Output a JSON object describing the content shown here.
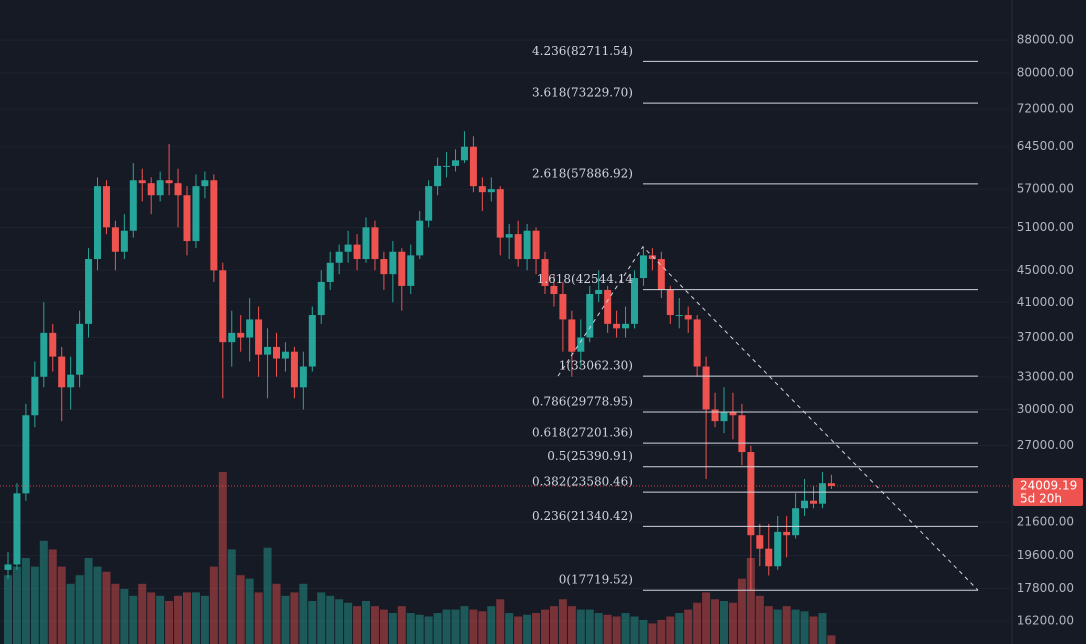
{
  "chart_data": {
    "type": "candlestick",
    "log_scale": true,
    "grid": true,
    "up_color": "#26a69a",
    "down_color": "#ef5350",
    "ylim": [
      15150,
      98900
    ],
    "yticks": [
      {
        "value": 88000,
        "label": "88000.00"
      },
      {
        "value": 80000,
        "label": "80000.00"
      },
      {
        "value": 72000,
        "label": "72000.00"
      },
      {
        "value": 64500,
        "label": "64500.00"
      },
      {
        "value": 57000,
        "label": "57000.00"
      },
      {
        "value": 51000,
        "label": "51000.00"
      },
      {
        "value": 45000,
        "label": "45000.00"
      },
      {
        "value": 41000,
        "label": "41000.00"
      },
      {
        "value": 37000,
        "label": "37000.00"
      },
      {
        "value": 33000,
        "label": "33000.00"
      },
      {
        "value": 30000,
        "label": "30000.00"
      },
      {
        "value": 27000,
        "label": "27000.00"
      },
      {
        "value": 21600,
        "label": "21600.00"
      },
      {
        "value": 19600,
        "label": "19600.00"
      },
      {
        "value": 17800,
        "label": "17800.00"
      },
      {
        "value": 16200,
        "label": "16200.00"
      }
    ],
    "open": [
      18800,
      19100,
      23500,
      29500,
      33000,
      37500,
      35000,
      32000,
      33200,
      38500,
      46500,
      57500,
      51000,
      47500,
      50500,
      58500,
      58000,
      56000,
      58500,
      58000,
      56000,
      49000,
      57500,
      58500,
      45000,
      36500,
      37500,
      37000,
      39000,
      35200,
      36000,
      34800,
      35500,
      32000,
      34000,
      39500,
      43500,
      46000,
      47500,
      48500,
      46500,
      51000,
      46500,
      44500,
      47500,
      43000,
      47000,
      52000,
      57500,
      61000,
      61000,
      62000,
      64500,
      57500,
      56500,
      57000,
      49500,
      50000,
      46500,
      50500,
      46500,
      43000,
      42000,
      39000,
      35500,
      37000,
      42000,
      42500,
      38500,
      38000,
      38500,
      44000,
      47000,
      46500,
      42500,
      39500,
      39500,
      39000,
      34000,
      30000,
      29000,
      29800,
      29500,
      26500,
      20800,
      20000,
      19000,
      21000,
      20800,
      22500,
      23000,
      22800,
      24200
    ],
    "high": [
      19800,
      24200,
      30500,
      34500,
      41000,
      38500,
      36000,
      35000,
      40000,
      48000,
      59000,
      58500,
      52000,
      53000,
      61500,
      60500,
      59000,
      60000,
      65000,
      60500,
      57500,
      59500,
      60000,
      59500,
      46000,
      40000,
      39500,
      41500,
      40500,
      38000,
      37500,
      36500,
      36000,
      35500,
      40500,
      45000,
      47500,
      48500,
      50500,
      50000,
      52500,
      52000,
      47500,
      49000,
      48000,
      48500,
      53500,
      58500,
      62500,
      63500,
      64000,
      67500,
      66500,
      59000,
      59000,
      57500,
      51500,
      52000,
      51500,
      51000,
      47500,
      44500,
      43500,
      40000,
      39000,
      43000,
      45000,
      43000,
      40000,
      40500,
      45000,
      48000,
      48000,
      47500,
      43000,
      41500,
      40500,
      39500,
      35000,
      31500,
      32000,
      31500,
      30500,
      27000,
      21500,
      21500,
      22000,
      22000,
      23500,
      24500,
      24000,
      25000,
      24800
    ],
    "low": [
      18300,
      18800,
      23000,
      28500,
      32000,
      33500,
      29000,
      30000,
      32000,
      37000,
      45000,
      50000,
      45000,
      46500,
      49500,
      55000,
      53000,
      55000,
      56000,
      51000,
      47000,
      48000,
      55500,
      43500,
      31000,
      34000,
      35500,
      34500,
      33000,
      31000,
      33000,
      33500,
      31000,
      30000,
      33500,
      38500,
      42500,
      44500,
      46000,
      45000,
      46000,
      45000,
      42500,
      41000,
      40000,
      42000,
      46500,
      51000,
      56000,
      59000,
      60000,
      61500,
      56500,
      53500,
      55000,
      47000,
      46500,
      45500,
      45000,
      44500,
      42000,
      40500,
      35500,
      33000,
      34000,
      36500,
      41000,
      37500,
      37000,
      37000,
      38000,
      43000,
      45000,
      41500,
      38500,
      38000,
      37500,
      33000,
      24500,
      28500,
      28000,
      27500,
      25500,
      17700,
      19000,
      18500,
      18800,
      19500,
      20600,
      22000,
      22500,
      22500,
      23800
    ],
    "close": [
      19100,
      23500,
      29500,
      33000,
      37500,
      35000,
      32000,
      33200,
      38500,
      46500,
      57500,
      51000,
      47500,
      50500,
      58500,
      58000,
      56000,
      58500,
      58000,
      56000,
      49000,
      57500,
      58500,
      45000,
      36500,
      37500,
      37000,
      39000,
      35200,
      36000,
      34800,
      35500,
      32000,
      34000,
      39500,
      43500,
      46000,
      47500,
      48500,
      46500,
      51000,
      46500,
      44500,
      47500,
      43000,
      47000,
      52000,
      57500,
      61000,
      61000,
      62000,
      64500,
      57500,
      56500,
      57000,
      49500,
      50000,
      46500,
      50500,
      46500,
      43000,
      42000,
      39000,
      35500,
      37000,
      42000,
      42500,
      38500,
      38000,
      38500,
      44000,
      47000,
      46500,
      42500,
      39500,
      39500,
      39000,
      34000,
      30000,
      29000,
      29800,
      29500,
      26500,
      20800,
      20000,
      19000,
      21000,
      20800,
      22500,
      23000,
      22800,
      24200,
      24009.19
    ],
    "volume_lim": [
      0,
      100
    ],
    "volume": [
      40,
      45,
      50,
      45,
      60,
      55,
      45,
      35,
      40,
      50,
      45,
      42,
      35,
      32,
      28,
      35,
      30,
      28,
      25,
      28,
      30,
      30,
      28,
      45,
      100,
      55,
      40,
      38,
      30,
      56,
      35,
      28,
      30,
      35,
      25,
      30,
      28,
      26,
      24,
      22,
      25,
      22,
      20,
      18,
      22,
      18,
      17,
      16,
      18,
      20,
      20,
      22,
      20,
      19,
      22,
      26,
      18,
      16,
      17,
      18,
      20,
      22,
      26,
      22,
      20,
      20,
      18,
      17,
      16,
      18,
      16,
      14,
      12,
      14,
      16,
      18,
      20,
      24,
      30,
      26,
      25,
      24,
      38,
      50,
      28,
      22,
      20,
      22,
      20,
      19,
      16,
      18,
      5
    ],
    "fib_levels": [
      {
        "value": 82711.54,
        "label": "4.236(82711.54)"
      },
      {
        "value": 73229.7,
        "label": "3.618(73229.70)"
      },
      {
        "value": 57886.92,
        "label": "2.618(57886.92)"
      },
      {
        "value": 42544.14,
        "label": "1.618(42544.14"
      },
      {
        "value": 33062.3,
        "label": "1(33062.30)"
      },
      {
        "value": 29778.95,
        "label": "0.786(29778.95)"
      },
      {
        "value": 27201.36,
        "label": "0.618(27201.36)"
      },
      {
        "value": 25390.91,
        "label": "0.5(25390.91)"
      },
      {
        "value": 23580.46,
        "label": "0.382(23580.46)"
      },
      {
        "value": 21340.42,
        "label": "0.236(21340.42)"
      },
      {
        "value": 17719.52,
        "label": "0(17719.52)"
      }
    ],
    "trend_line": [
      33062.3,
      48200,
      17719.52
    ],
    "last_price": 24009.19,
    "countdown": "5d 20h"
  }
}
